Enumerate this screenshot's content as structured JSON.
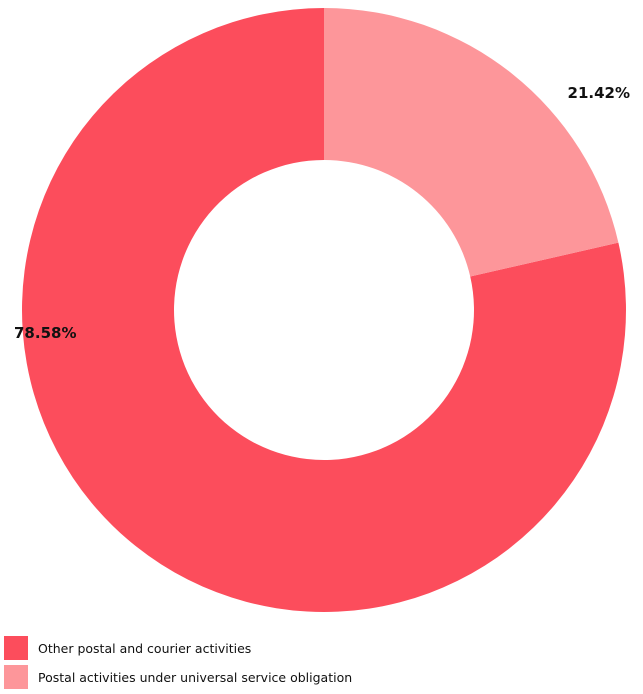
{
  "chart_data": {
    "type": "pie",
    "style": "donut",
    "title": "",
    "categories": [
      "Other postal and courier activities",
      "Postal activities under universal service obligation"
    ],
    "values": [
      78.58,
      21.42
    ],
    "unit": "%",
    "labels": [
      "78.58%",
      "21.42%"
    ],
    "colors": [
      "#fc4d5c",
      "#fd969a"
    ],
    "start_angle_deg": 90,
    "direction": "counterclockwise",
    "legend": {
      "placement": "bottom-left",
      "entries": [
        "Other postal and courier activities",
        "Postal activities under universal service obligation"
      ]
    }
  }
}
